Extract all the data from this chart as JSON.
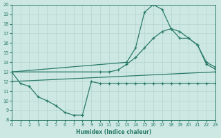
{
  "xlabel": "Humidex (Indice chaleur)",
  "bg_color": "#cde8e2",
  "line_color": "#2a7a6a",
  "grid_color": "#b8d8d2",
  "xlim": [
    0,
    23
  ],
  "ylim": [
    8,
    20
  ],
  "xticks": [
    0,
    1,
    2,
    3,
    4,
    5,
    6,
    7,
    8,
    9,
    10,
    11,
    12,
    13,
    14,
    15,
    16,
    17,
    18,
    19,
    20,
    21,
    22,
    23
  ],
  "yticks": [
    8,
    9,
    10,
    11,
    12,
    13,
    14,
    15,
    16,
    17,
    18,
    19,
    20
  ],
  "lines": [
    {
      "x": [
        0,
        1,
        2,
        3,
        4,
        5,
        6,
        7,
        8,
        9,
        10,
        11,
        12,
        13,
        14,
        15,
        16,
        17,
        18,
        19,
        20,
        21,
        22,
        23
      ],
      "y": [
        13,
        11.8,
        11.5,
        10.4,
        10.0,
        9.5,
        8.8,
        8.5,
        8.5,
        12.0,
        11.8,
        11.8,
        11.8,
        11.8,
        11.8,
        11.8,
        11.8,
        11.8,
        11.8,
        11.8,
        11.8,
        11.8,
        11.8,
        11.8
      ]
    },
    {
      "x": [
        0,
        23
      ],
      "y": [
        12.0,
        13.0
      ]
    },
    {
      "x": [
        0,
        10,
        11,
        12,
        13,
        14,
        15,
        16,
        17,
        18,
        19,
        20,
        21,
        22,
        23
      ],
      "y": [
        13,
        13.0,
        13.0,
        13.2,
        13.8,
        14.5,
        15.5,
        16.5,
        17.2,
        17.5,
        17.2,
        16.5,
        15.8,
        14.0,
        13.5
      ]
    },
    {
      "x": [
        0,
        13,
        14,
        15,
        16,
        17,
        18,
        19,
        20,
        21,
        22,
        23
      ],
      "y": [
        13,
        14.0,
        15.5,
        19.2,
        20.0,
        19.5,
        17.5,
        16.5,
        16.5,
        15.8,
        13.8,
        13.3
      ]
    }
  ]
}
